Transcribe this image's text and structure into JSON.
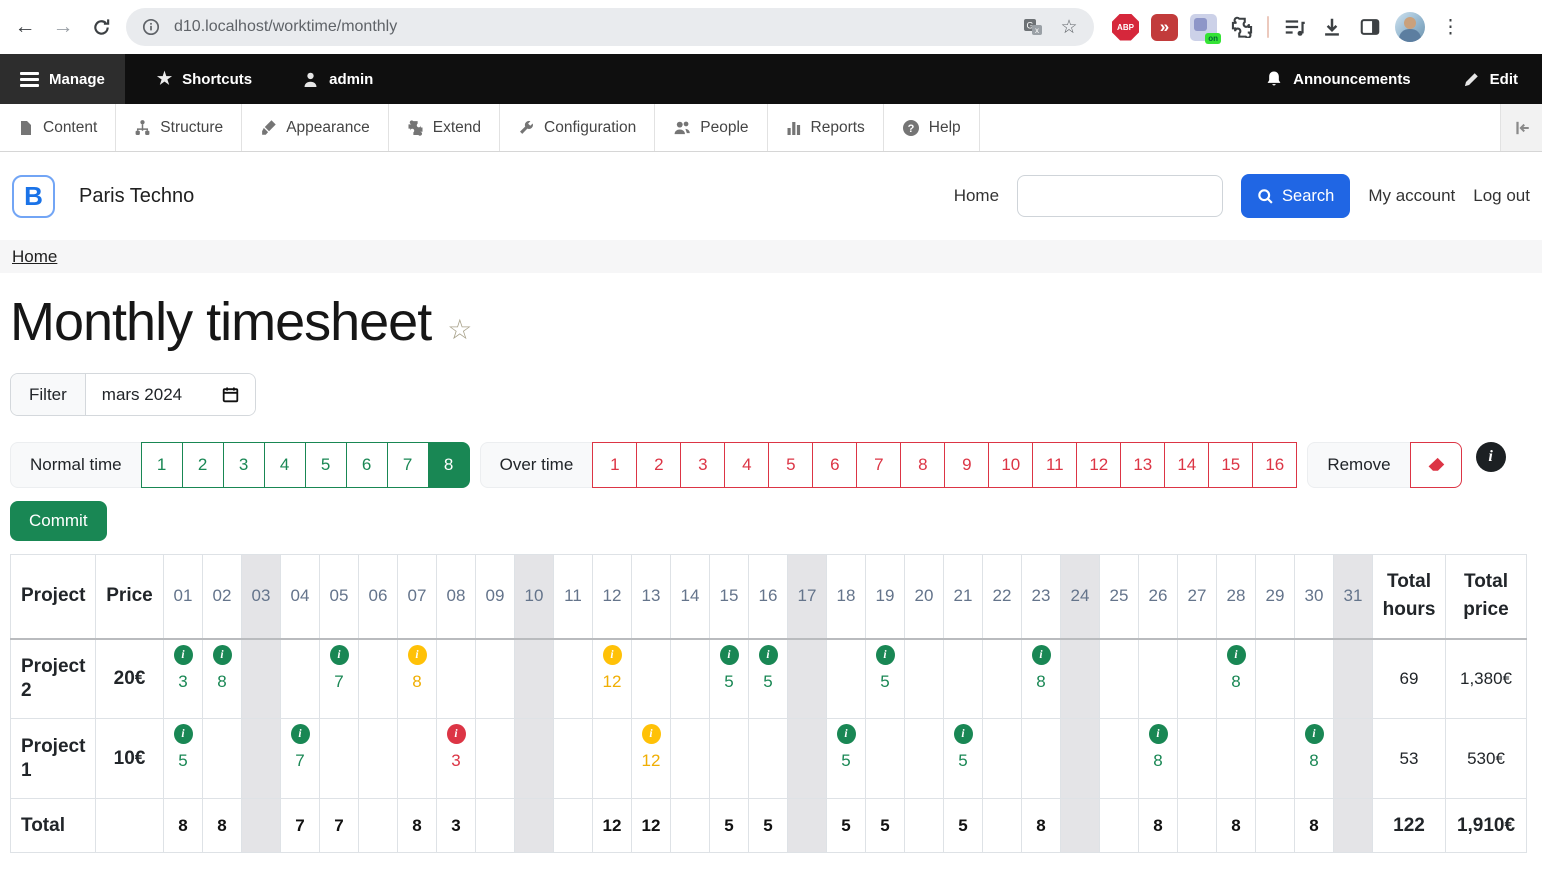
{
  "browser": {
    "url": "d10.localhost/worktime/monthly",
    "extension_on_badge": "on",
    "adblock_label": "ABP"
  },
  "admin_toolbar": {
    "manage": "Manage",
    "shortcuts": "Shortcuts",
    "user": "admin",
    "announcements": "Announcements",
    "edit": "Edit"
  },
  "admin_menu": {
    "items": [
      "Content",
      "Structure",
      "Appearance",
      "Extend",
      "Configuration",
      "People",
      "Reports",
      "Help"
    ]
  },
  "site_header": {
    "logo_letter": "B",
    "site_name": "Paris Techno",
    "nav_home": "Home",
    "search_placeholder": "",
    "search_button_label": "Search",
    "my_account": "My account",
    "log_out": "Log out"
  },
  "breadcrumb": {
    "home": "Home"
  },
  "page": {
    "title": "Monthly timesheet",
    "filter_label": "Filter",
    "filter_value": "mars 2024"
  },
  "time_toolbar": {
    "normal_label": "Normal time",
    "normal_values": [
      "1",
      "2",
      "3",
      "4",
      "5",
      "6",
      "7",
      "8"
    ],
    "normal_selected": "8",
    "over_label": "Over time",
    "over_values": [
      "1",
      "2",
      "3",
      "4",
      "5",
      "6",
      "7",
      "8",
      "9",
      "10",
      "11",
      "12",
      "13",
      "14",
      "15",
      "16"
    ],
    "remove_label": "Remove"
  },
  "commit": {
    "label": "Commit"
  },
  "timesheet": {
    "col_project": "Project",
    "col_price": "Price",
    "col_total_hours": "Total hours",
    "col_total_price": "Total price",
    "days": [
      "01",
      "02",
      "03",
      "04",
      "05",
      "06",
      "07",
      "08",
      "09",
      "10",
      "11",
      "12",
      "13",
      "14",
      "15",
      "16",
      "17",
      "18",
      "19",
      "20",
      "21",
      "22",
      "23",
      "24",
      "25",
      "26",
      "27",
      "28",
      "29",
      "30",
      "31"
    ],
    "weekend_days": [
      "03",
      "10",
      "17",
      "24",
      "31"
    ],
    "rows": [
      {
        "project": "Project 2",
        "price": "20€",
        "entries": {
          "01": {
            "v": "3",
            "s": "green"
          },
          "02": {
            "v": "8",
            "s": "green"
          },
          "05": {
            "v": "7",
            "s": "green"
          },
          "07": {
            "v": "8",
            "s": "yellow"
          },
          "12": {
            "v": "12",
            "s": "yellow"
          },
          "15": {
            "v": "5",
            "s": "green"
          },
          "16": {
            "v": "5",
            "s": "green"
          },
          "19": {
            "v": "5",
            "s": "green"
          },
          "23": {
            "v": "8",
            "s": "green"
          },
          "28": {
            "v": "8",
            "s": "green"
          }
        },
        "total_hours": "69",
        "total_price": "1,380€"
      },
      {
        "project": "Project 1",
        "price": "10€",
        "entries": {
          "01": {
            "v": "5",
            "s": "green"
          },
          "04": {
            "v": "7",
            "s": "green"
          },
          "08": {
            "v": "3",
            "s": "red"
          },
          "13": {
            "v": "12",
            "s": "yellow"
          },
          "18": {
            "v": "5",
            "s": "green"
          },
          "21": {
            "v": "5",
            "s": "green"
          },
          "26": {
            "v": "8",
            "s": "green"
          },
          "30": {
            "v": "8",
            "s": "green"
          }
        },
        "total_hours": "53",
        "total_price": "530€"
      }
    ],
    "total_row": {
      "label": "Total",
      "entries": {
        "01": "8",
        "02": "8",
        "04": "7",
        "05": "7",
        "07": "8",
        "08": "3",
        "12": "12",
        "13": "12",
        "15": "5",
        "16": "5",
        "18": "5",
        "19": "5",
        "21": "5",
        "23": "8",
        "26": "8",
        "28": "8",
        "30": "8"
      },
      "total_hours": "122",
      "total_price": "1,910€"
    }
  },
  "icons": {
    "badge_glyph": "i",
    "info_dot_glyph": "i",
    "back": "arrow-left",
    "forward": "arrow-right",
    "reload": "circular-arrow",
    "site_info": "info-circle",
    "translate": "google-translate",
    "bookmark": "star-outline",
    "adblock": "stop-octagon",
    "fast_forward": "double-chevron",
    "extensions": "puzzle-piece",
    "playlist": "music-list",
    "download": "down-arrow-tray",
    "sidebar": "split-panel",
    "profile": "avatar-photo",
    "menu": "kebab-dots",
    "manage": "hamburger",
    "shortcuts": "star",
    "admin_user": "person",
    "announcements": "bell",
    "edit": "pencil",
    "content": "document",
    "structure": "sitemap",
    "appearance": "brush",
    "extend": "puzzle",
    "configuration": "wrench",
    "people": "two-persons",
    "reports": "bar-chart",
    "help": "question-circle",
    "collapse": "pin-left",
    "search": "magnifier",
    "calendar": "calendar",
    "remove_eraser": "eraser",
    "favorite": "star-outline"
  },
  "colors": {
    "normal_green": "#198754",
    "over_red": "#dc3545",
    "warning_yellow": "#ffc107",
    "primary_blue": "#2066e4",
    "weekend_grey": "#e4e4e7"
  }
}
